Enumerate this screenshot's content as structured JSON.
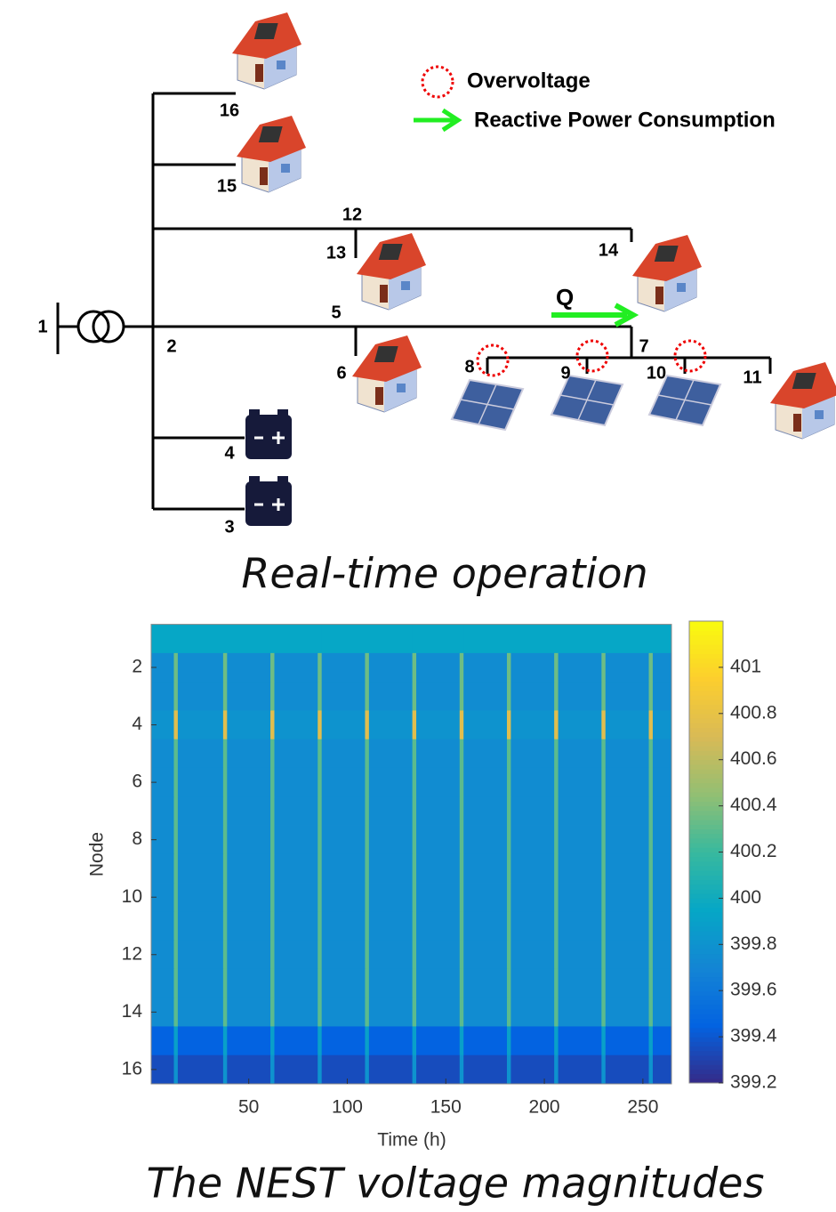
{
  "diagram": {
    "caption": "Real-time operation",
    "legend": [
      "Overvoltage",
      "Reactive Power Consumption"
    ],
    "flow_label": "Q",
    "nodes": [
      "1",
      "2",
      "3",
      "4",
      "5",
      "6",
      "7",
      "8",
      "9",
      "10",
      "11",
      "12",
      "13",
      "14",
      "15",
      "16"
    ]
  },
  "chart_data": {
    "type": "heatmap",
    "caption": "The NEST voltage magnitudes",
    "xlabel": "Time (h)",
    "ylabel": "Node",
    "colormap": "parula",
    "x_edges": [
      0.5,
      12,
      14,
      37,
      39,
      61,
      63,
      85,
      87,
      109,
      111,
      133,
      135,
      157,
      159,
      181,
      183,
      205,
      207,
      229,
      231,
      253,
      255,
      264.5
    ],
    "y": [
      1,
      2,
      3,
      4,
      5,
      6,
      7,
      8,
      9,
      10,
      11,
      12,
      13,
      14,
      15,
      16
    ],
    "values": [
      [
        399.95,
        399.95,
        399.95,
        399.95,
        399.95,
        399.95,
        399.95,
        399.95,
        399.95,
        399.95,
        399.95,
        399.95,
        399.95,
        399.95,
        399.95,
        399.95,
        399.95,
        399.95,
        399.95,
        399.95,
        399.95,
        399.95,
        399.95
      ],
      [
        399.75,
        400.35,
        399.75,
        400.35,
        399.75,
        400.35,
        399.75,
        400.35,
        399.75,
        400.35,
        399.75,
        400.35,
        399.75,
        400.35,
        399.75,
        400.35,
        399.75,
        400.35,
        399.75,
        400.35,
        399.75,
        400.35,
        399.75
      ],
      [
        399.75,
        400.35,
        399.75,
        400.35,
        399.75,
        400.35,
        399.75,
        400.35,
        399.75,
        400.35,
        399.75,
        400.35,
        399.75,
        400.35,
        399.75,
        400.35,
        399.75,
        400.35,
        399.75,
        400.35,
        399.75,
        400.35,
        399.75
      ],
      [
        399.8,
        400.75,
        399.8,
        400.75,
        399.8,
        400.75,
        399.8,
        400.75,
        399.8,
        400.75,
        399.8,
        400.75,
        399.8,
        400.75,
        399.8,
        400.75,
        399.8,
        400.75,
        399.8,
        400.75,
        399.8,
        400.75,
        399.8
      ],
      [
        399.75,
        400.3,
        399.75,
        400.3,
        399.75,
        400.3,
        399.75,
        400.3,
        399.75,
        400.3,
        399.75,
        400.3,
        399.75,
        400.3,
        399.75,
        400.3,
        399.75,
        400.3,
        399.75,
        400.3,
        399.75,
        400.3,
        399.75
      ],
      [
        399.75,
        400.3,
        399.75,
        400.3,
        399.75,
        400.3,
        399.75,
        400.3,
        399.75,
        400.3,
        399.75,
        400.3,
        399.75,
        400.3,
        399.75,
        400.3,
        399.75,
        400.3,
        399.75,
        400.3,
        399.75,
        400.3,
        399.75
      ],
      [
        399.75,
        400.3,
        399.75,
        400.3,
        399.75,
        400.3,
        399.75,
        400.3,
        399.75,
        400.3,
        399.75,
        400.3,
        399.75,
        400.3,
        399.75,
        400.3,
        399.75,
        400.3,
        399.75,
        400.3,
        399.75,
        400.3,
        399.75
      ],
      [
        399.75,
        400.3,
        399.75,
        400.3,
        399.75,
        400.3,
        399.75,
        400.3,
        399.75,
        400.3,
        399.75,
        400.3,
        399.75,
        400.3,
        399.75,
        400.3,
        399.75,
        400.3,
        399.75,
        400.3,
        399.75,
        400.3,
        399.75
      ],
      [
        399.75,
        400.3,
        399.75,
        400.3,
        399.75,
        400.3,
        399.75,
        400.3,
        399.75,
        400.3,
        399.75,
        400.3,
        399.75,
        400.3,
        399.75,
        400.3,
        399.75,
        400.3,
        399.75,
        400.3,
        399.75,
        400.3,
        399.75
      ],
      [
        399.75,
        400.3,
        399.75,
        400.3,
        399.75,
        400.3,
        399.75,
        400.3,
        399.75,
        400.3,
        399.75,
        400.3,
        399.75,
        400.3,
        399.75,
        400.3,
        399.75,
        400.3,
        399.75,
        400.3,
        399.75,
        400.3,
        399.75
      ],
      [
        399.75,
        400.3,
        399.75,
        400.3,
        399.75,
        400.3,
        399.75,
        400.3,
        399.75,
        400.3,
        399.75,
        400.3,
        399.75,
        400.3,
        399.75,
        400.3,
        399.75,
        400.3,
        399.75,
        400.3,
        399.75,
        400.3,
        399.75
      ],
      [
        399.75,
        400.3,
        399.75,
        400.3,
        399.75,
        400.3,
        399.75,
        400.3,
        399.75,
        400.3,
        399.75,
        400.3,
        399.75,
        400.3,
        399.75,
        400.3,
        399.75,
        400.3,
        399.75,
        400.3,
        399.75,
        400.3,
        399.75
      ],
      [
        399.75,
        400.3,
        399.75,
        400.3,
        399.75,
        400.3,
        399.75,
        400.3,
        399.75,
        400.3,
        399.75,
        400.3,
        399.75,
        400.3,
        399.75,
        400.3,
        399.75,
        400.3,
        399.75,
        400.3,
        399.75,
        400.3,
        399.75
      ],
      [
        399.75,
        400.3,
        399.75,
        400.3,
        399.75,
        400.3,
        399.75,
        400.3,
        399.75,
        400.3,
        399.75,
        400.3,
        399.75,
        400.3,
        399.75,
        400.3,
        399.75,
        400.3,
        399.75,
        400.3,
        399.75,
        400.3,
        399.75
      ],
      [
        399.45,
        399.9,
        399.45,
        399.9,
        399.45,
        399.9,
        399.45,
        399.9,
        399.45,
        399.9,
        399.45,
        399.9,
        399.45,
        399.9,
        399.45,
        399.9,
        399.45,
        399.9,
        399.45,
        399.9,
        399.45,
        399.9,
        399.45
      ],
      [
        399.35,
        399.8,
        399.35,
        399.8,
        399.35,
        399.8,
        399.35,
        399.8,
        399.35,
        399.8,
        399.35,
        399.8,
        399.35,
        399.8,
        399.35,
        399.8,
        399.35,
        399.8,
        399.35,
        399.8,
        399.35,
        399.8,
        399.35
      ]
    ],
    "xlim": [
      0.5,
      264.5
    ],
    "xticks": [
      50,
      100,
      150,
      200,
      250
    ],
    "ylim": [
      0.5,
      16.5
    ],
    "yticks": [
      2,
      4,
      6,
      8,
      10,
      12,
      14,
      16
    ],
    "clim": [
      399.2,
      401.2
    ],
    "cticks": [
      399.2,
      399.4,
      399.6,
      399.8,
      400,
      400.2,
      400.4,
      400.6,
      400.8,
      401
    ]
  }
}
